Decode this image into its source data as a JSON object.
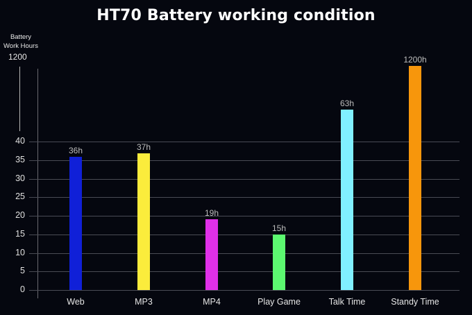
{
  "title": "HT70 Battery working condition",
  "y_axis": {
    "label_line1": "Battery",
    "label_line2": "Work Hours",
    "max_label": "1200"
  },
  "chart_data": {
    "type": "bar",
    "title": "HT70 Battery working condition",
    "xlabel": "",
    "ylabel": "Battery Work Hours",
    "categories": [
      "Web",
      "MP3",
      "MP4",
      "Play Game",
      "Talk Time",
      "Standy Time"
    ],
    "values": [
      36,
      37,
      19,
      15,
      63,
      1200
    ],
    "value_labels": [
      "36h",
      "37h",
      "19h",
      "15h",
      "63h",
      "1200h"
    ],
    "colors": [
      "#1020d8",
      "#fbec3c",
      "#e030e8",
      "#5cf870",
      "#80f0ff",
      "#f7960c"
    ],
    "y_ticks": [
      "0",
      "5",
      "10",
      "15",
      "20",
      "25",
      "30",
      "35",
      "40"
    ],
    "y_axis_break": true,
    "y_break_top_label": "1200",
    "ylim": [
      0,
      40
    ],
    "grid": true,
    "legend": "none"
  }
}
